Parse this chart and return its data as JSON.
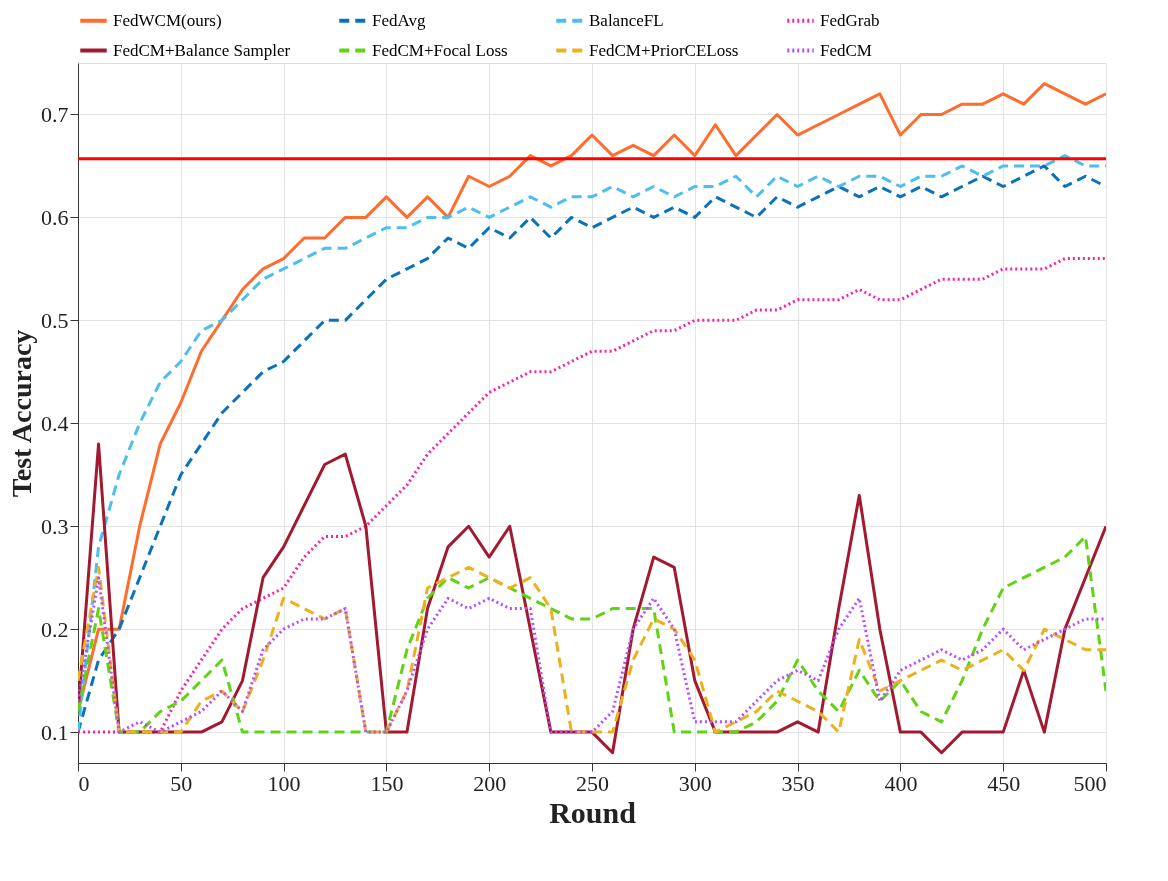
{
  "chart_data": {
    "type": "line",
    "xlabel": "Round",
    "ylabel": "Test Accuracy",
    "x": [
      0,
      10,
      20,
      30,
      40,
      50,
      60,
      70,
      80,
      90,
      100,
      110,
      120,
      130,
      140,
      150,
      160,
      170,
      180,
      190,
      200,
      210,
      220,
      230,
      240,
      250,
      260,
      270,
      280,
      290,
      300,
      310,
      320,
      330,
      340,
      350,
      360,
      370,
      380,
      390,
      400,
      410,
      420,
      430,
      440,
      450,
      460,
      470,
      480,
      490,
      500
    ],
    "xlim": [
      0,
      500
    ],
    "xticks": [
      0,
      50,
      100,
      150,
      200,
      250,
      300,
      350,
      400,
      450,
      500
    ],
    "ylim": [
      0.07,
      0.75
    ],
    "yticks": [
      0.1,
      0.2,
      0.3,
      0.4,
      0.5,
      0.6,
      0.7
    ],
    "grid": true,
    "legend": "top",
    "marker": "none",
    "ref_lines": [
      {
        "axis": "y",
        "value": 0.657,
        "color": "#ff0000",
        "line_style": "solid"
      }
    ],
    "series": [
      {
        "name": "FedWCM(ours)",
        "color": "#ff6d2e",
        "line_style": "solid",
        "values": [
          0.12,
          0.2,
          0.2,
          0.3,
          0.38,
          0.42,
          0.47,
          0.5,
          0.53,
          0.55,
          0.56,
          0.58,
          0.58,
          0.6,
          0.6,
          0.62,
          0.6,
          0.62,
          0.6,
          0.64,
          0.63,
          0.64,
          0.66,
          0.65,
          0.66,
          0.68,
          0.66,
          0.67,
          0.66,
          0.68,
          0.66,
          0.69,
          0.66,
          0.68,
          0.7,
          0.68,
          0.69,
          0.7,
          0.71,
          0.72,
          0.68,
          0.7,
          0.7,
          0.71,
          0.71,
          0.72,
          0.71,
          0.73,
          0.72,
          0.71,
          0.72
        ]
      },
      {
        "name": "FedAvg",
        "color": "#0a72ba",
        "line_style": "dashed",
        "values": [
          0.1,
          0.17,
          0.2,
          0.25,
          0.3,
          0.35,
          0.38,
          0.41,
          0.43,
          0.45,
          0.46,
          0.48,
          0.5,
          0.5,
          0.52,
          0.54,
          0.55,
          0.56,
          0.58,
          0.57,
          0.59,
          0.58,
          0.6,
          0.58,
          0.6,
          0.59,
          0.6,
          0.61,
          0.6,
          0.61,
          0.6,
          0.62,
          0.61,
          0.6,
          0.62,
          0.61,
          0.62,
          0.63,
          0.62,
          0.63,
          0.62,
          0.63,
          0.62,
          0.63,
          0.64,
          0.63,
          0.64,
          0.65,
          0.63,
          0.64,
          0.63
        ]
      },
      {
        "name": "BalanceFL",
        "color": "#4dbeee",
        "line_style": "dashed",
        "values": [
          0.1,
          0.28,
          0.35,
          0.4,
          0.44,
          0.46,
          0.49,
          0.5,
          0.52,
          0.54,
          0.55,
          0.56,
          0.57,
          0.57,
          0.58,
          0.59,
          0.59,
          0.6,
          0.6,
          0.61,
          0.6,
          0.61,
          0.62,
          0.61,
          0.62,
          0.62,
          0.63,
          0.62,
          0.63,
          0.62,
          0.63,
          0.63,
          0.64,
          0.62,
          0.64,
          0.63,
          0.64,
          0.63,
          0.64,
          0.64,
          0.63,
          0.64,
          0.64,
          0.65,
          0.64,
          0.65,
          0.65,
          0.65,
          0.66,
          0.65,
          0.65
        ]
      },
      {
        "name": "FedGrab",
        "color": "#fd21a0",
        "line_style": "dotted",
        "values": [
          0.1,
          0.1,
          0.1,
          0.1,
          0.1,
          0.14,
          0.17,
          0.2,
          0.22,
          0.23,
          0.24,
          0.27,
          0.29,
          0.29,
          0.3,
          0.32,
          0.34,
          0.37,
          0.39,
          0.41,
          0.43,
          0.44,
          0.45,
          0.45,
          0.46,
          0.47,
          0.47,
          0.48,
          0.49,
          0.49,
          0.5,
          0.5,
          0.5,
          0.51,
          0.51,
          0.52,
          0.52,
          0.52,
          0.53,
          0.52,
          0.52,
          0.53,
          0.54,
          0.54,
          0.54,
          0.55,
          0.55,
          0.55,
          0.56,
          0.56,
          0.56
        ]
      },
      {
        "name": "FedCM+Balance Sampler",
        "color": "#a11a30",
        "line_style": "solid",
        "values": [
          0.12,
          0.38,
          0.1,
          0.1,
          0.1,
          0.1,
          0.1,
          0.11,
          0.15,
          0.25,
          0.28,
          0.32,
          0.36,
          0.37,
          0.3,
          0.1,
          0.1,
          0.22,
          0.28,
          0.3,
          0.27,
          0.3,
          0.2,
          0.1,
          0.1,
          0.1,
          0.08,
          0.2,
          0.27,
          0.26,
          0.15,
          0.1,
          0.1,
          0.1,
          0.1,
          0.11,
          0.1,
          0.22,
          0.33,
          0.2,
          0.1,
          0.1,
          0.08,
          0.1,
          0.1,
          0.1,
          0.16,
          0.1,
          0.2,
          0.25,
          0.3
        ]
      },
      {
        "name": "FedCM+Focal Loss",
        "color": "#5fd314",
        "line_style": "dashed",
        "values": [
          0.12,
          0.22,
          0.1,
          0.1,
          0.12,
          0.13,
          0.15,
          0.17,
          0.1,
          0.1,
          0.1,
          0.1,
          0.1,
          0.1,
          0.1,
          0.1,
          0.18,
          0.23,
          0.25,
          0.24,
          0.25,
          0.24,
          0.23,
          0.22,
          0.21,
          0.21,
          0.22,
          0.22,
          0.22,
          0.1,
          0.1,
          0.1,
          0.1,
          0.11,
          0.13,
          0.17,
          0.14,
          0.12,
          0.16,
          0.13,
          0.15,
          0.12,
          0.11,
          0.15,
          0.2,
          0.24,
          0.25,
          0.26,
          0.27,
          0.29,
          0.14
        ]
      },
      {
        "name": "FedCM+PriorCELoss",
        "color": "#edb120",
        "line_style": "dashed",
        "values": [
          0.15,
          0.26,
          0.1,
          0.1,
          0.1,
          0.1,
          0.13,
          0.14,
          0.12,
          0.17,
          0.23,
          0.22,
          0.21,
          0.22,
          0.1,
          0.1,
          0.14,
          0.24,
          0.25,
          0.26,
          0.25,
          0.24,
          0.25,
          0.22,
          0.1,
          0.1,
          0.1,
          0.17,
          0.21,
          0.2,
          0.17,
          0.1,
          0.11,
          0.12,
          0.14,
          0.13,
          0.12,
          0.1,
          0.19,
          0.14,
          0.15,
          0.16,
          0.17,
          0.16,
          0.17,
          0.18,
          0.16,
          0.2,
          0.19,
          0.18,
          0.18
        ]
      },
      {
        "name": "FedCM",
        "color": "#b84dff",
        "line_style": "dotted",
        "values": [
          0.13,
          0.25,
          0.1,
          0.11,
          0.1,
          0.11,
          0.12,
          0.14,
          0.12,
          0.18,
          0.2,
          0.21,
          0.21,
          0.22,
          0.1,
          0.1,
          0.14,
          0.2,
          0.23,
          0.22,
          0.23,
          0.22,
          0.22,
          0.1,
          0.1,
          0.1,
          0.12,
          0.2,
          0.23,
          0.2,
          0.11,
          0.11,
          0.11,
          0.13,
          0.15,
          0.16,
          0.15,
          0.2,
          0.23,
          0.13,
          0.16,
          0.17,
          0.18,
          0.17,
          0.18,
          0.2,
          0.18,
          0.19,
          0.2,
          0.21,
          0.21
        ]
      }
    ]
  }
}
